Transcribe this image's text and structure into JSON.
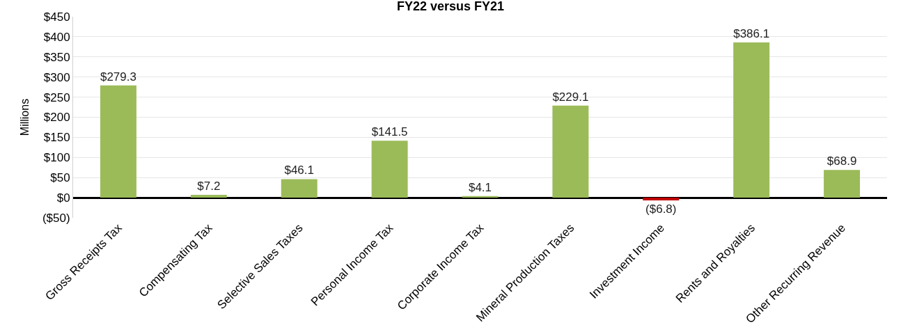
{
  "chart_data": {
    "type": "bar",
    "title": "FY22 versus FY21",
    "ylabel": "Millions",
    "categories": [
      "Gross Receipts Tax",
      "Compensating Tax",
      "Selective Sales Taxes",
      "Personal Income Tax",
      "Corporate Income Tax",
      "Mineral Production Taxes",
      "Investment Income",
      "Rents and Royalties",
      "Other Recurring Revenue"
    ],
    "values": [
      279.3,
      7.2,
      46.1,
      141.5,
      4.1,
      229.1,
      -6.8,
      386.1,
      68.9
    ],
    "colors": [
      "#9bbb59",
      "#9bbb59",
      "#9bbb59",
      "#9bbb59",
      "#9bbb59",
      "#9bbb59",
      "#c00000",
      "#9bbb59",
      "#9bbb59"
    ],
    "value_labels": [
      "$279.3",
      "$7.2",
      "$46.1",
      "$141.5",
      "$4.1",
      "$229.1",
      "($6.8)",
      "$386.1",
      "$68.9"
    ],
    "ylim": [
      -50,
      450
    ],
    "yticks": [
      {
        "value": -50,
        "label": "($50)"
      },
      {
        "value": 0,
        "label": "$0"
      },
      {
        "value": 50,
        "label": "$50"
      },
      {
        "value": 100,
        "label": "$100"
      },
      {
        "value": 150,
        "label": "$150"
      },
      {
        "value": 200,
        "label": "$200"
      },
      {
        "value": 250,
        "label": "$250"
      },
      {
        "value": 300,
        "label": "$300"
      },
      {
        "value": 350,
        "label": "$350"
      },
      {
        "value": 400,
        "label": "$400"
      },
      {
        "value": 450,
        "label": "$450"
      }
    ],
    "grid": "y"
  }
}
